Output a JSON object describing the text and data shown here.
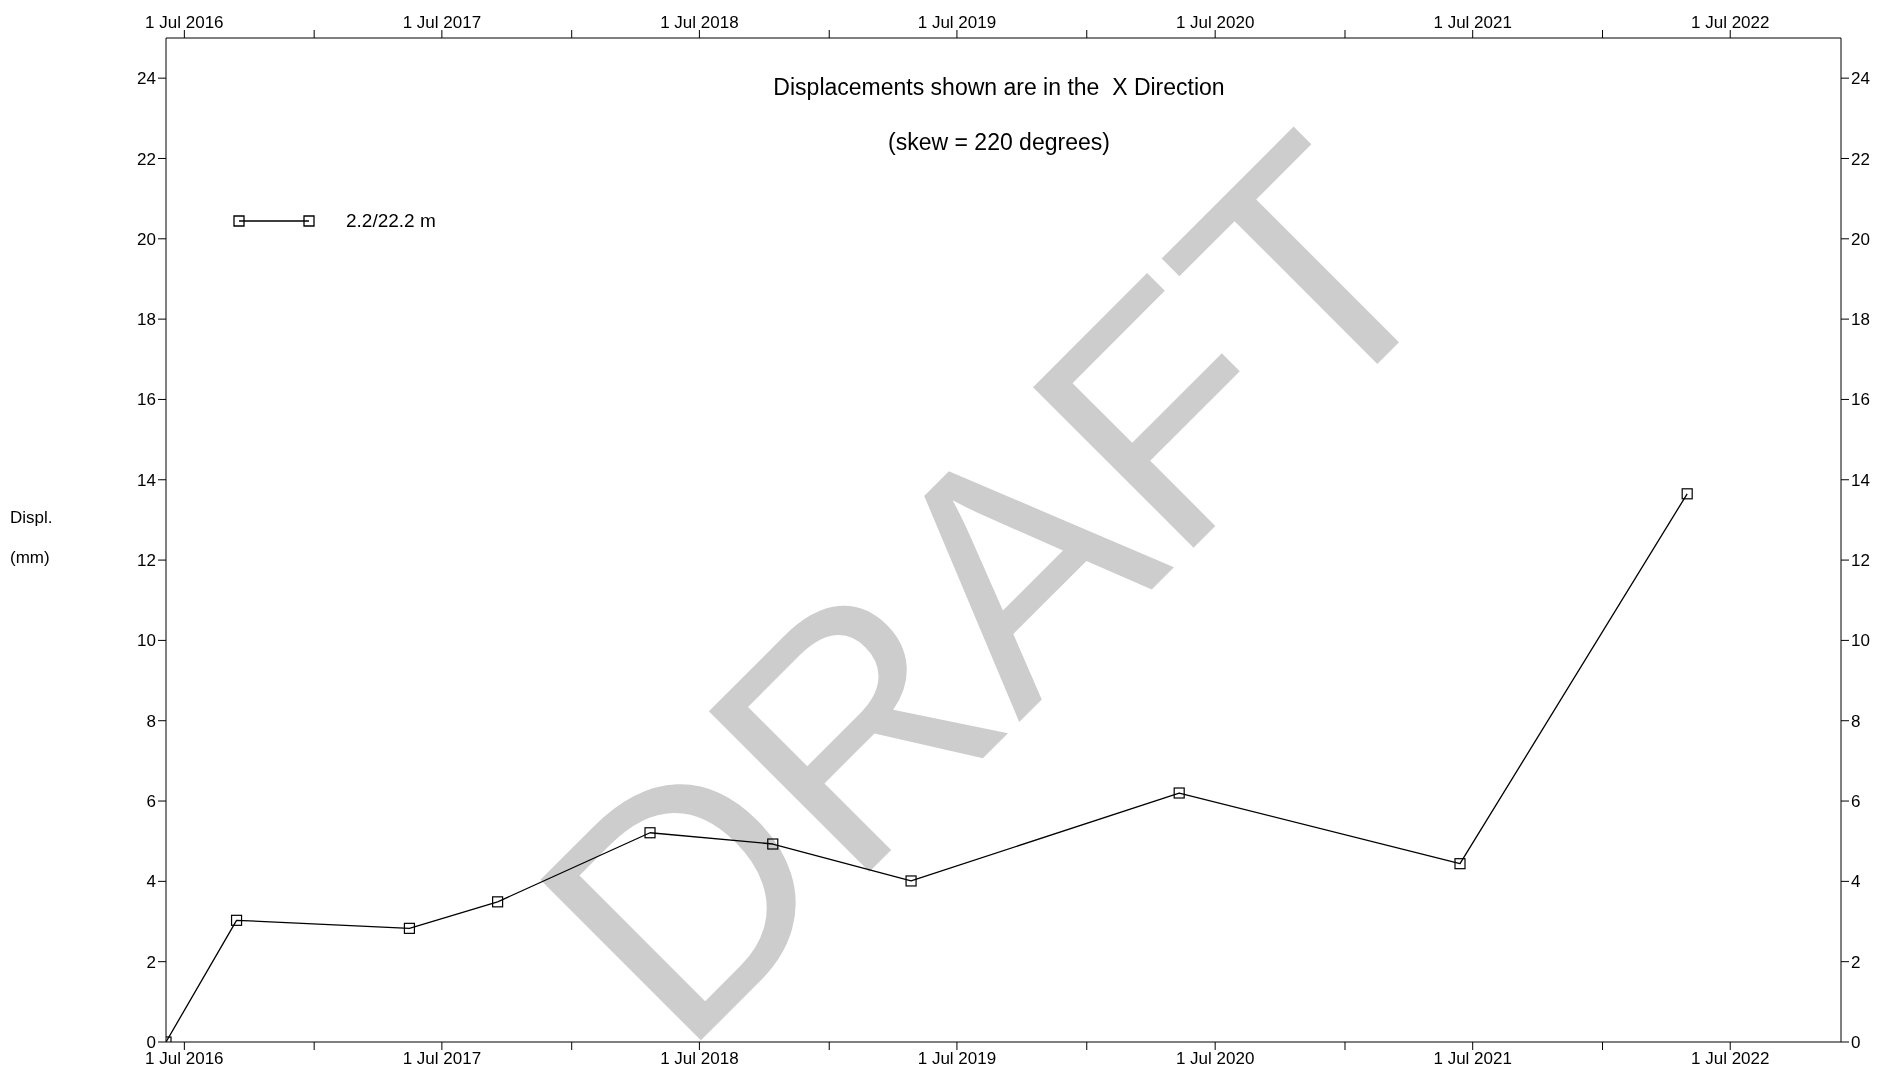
{
  "chart_data": {
    "type": "line",
    "title": "Displacements shown are in the  X Direction",
    "subtitle": "(skew = 220 degrees)",
    "ylabel": "Displ. (mm)",
    "annotations": [
      "DRAFT"
    ],
    "x": [
      "2016-06-05",
      "2016-09-13",
      "2017-05-16",
      "2017-09-18",
      "2018-04-22",
      "2018-10-13",
      "2019-04-27",
      "2020-05-11",
      "2021-06-13",
      "2022-05-01"
    ],
    "series": [
      {
        "name": "2.2/22.2 m",
        "color": "#000000",
        "values": [
          0,
          3.03,
          2.83,
          3.49,
          5.21,
          4.93,
          4.01,
          6.2,
          4.44,
          13.65
        ]
      }
    ],
    "xlim": [
      "2016-06-05",
      "2022-12-05"
    ],
    "xticks": [
      {
        "value": "2016-07-01",
        "label": "1 Jul 2016"
      },
      {
        "value": "2017-01-01",
        "label": null
      },
      {
        "value": "2017-07-01",
        "label": "1 Jul 2017"
      },
      {
        "value": "2018-01-01",
        "label": null
      },
      {
        "value": "2018-07-01",
        "label": "1 Jul 2018"
      },
      {
        "value": "2019-01-01",
        "label": null
      },
      {
        "value": "2019-07-01",
        "label": "1 Jul 2019"
      },
      {
        "value": "2020-01-01",
        "label": null
      },
      {
        "value": "2020-07-01",
        "label": "1 Jul 2020"
      },
      {
        "value": "2021-01-01",
        "label": null
      },
      {
        "value": "2021-07-01",
        "label": "1 Jul 2021"
      },
      {
        "value": "2022-01-01",
        "label": null
      },
      {
        "value": "2022-07-01",
        "label": "1 Jul 2022"
      }
    ],
    "x2lim": [
      "2016-06-05",
      "2022-12-05"
    ],
    "x2ticks": [
      {
        "value": "2016-07-01",
        "label": "1 Jul 2016"
      },
      {
        "value": "2017-01-01",
        "label": null
      },
      {
        "value": "2017-07-01",
        "label": "1 Jul 2017"
      },
      {
        "value": "2018-01-01",
        "label": null
      },
      {
        "value": "2018-07-01",
        "label": "1 Jul 2018"
      },
      {
        "value": "2019-01-01",
        "label": null
      },
      {
        "value": "2019-07-01",
        "label": "1 Jul 2019"
      },
      {
        "value": "2020-01-01",
        "label": null
      },
      {
        "value": "2020-07-01",
        "label": "1 Jul 2020"
      },
      {
        "value": "2021-01-01",
        "label": null
      },
      {
        "value": "2021-07-01",
        "label": "1 Jul 2021"
      },
      {
        "value": "2022-01-01",
        "label": null
      },
      {
        "value": "2022-07-01",
        "label": "1 Jul 2022"
      }
    ],
    "ylim": [
      0,
      25
    ],
    "yticks": [
      0,
      2,
      4,
      6,
      8,
      10,
      12,
      14,
      16,
      18,
      20,
      22,
      24
    ],
    "y2lim": [
      0,
      25
    ],
    "y2ticks": [
      0,
      2,
      4,
      6,
      8,
      10,
      12,
      14,
      16,
      18,
      20,
      22,
      24
    ],
    "legend": "top left",
    "marker": "square",
    "line_style": "solid"
  }
}
